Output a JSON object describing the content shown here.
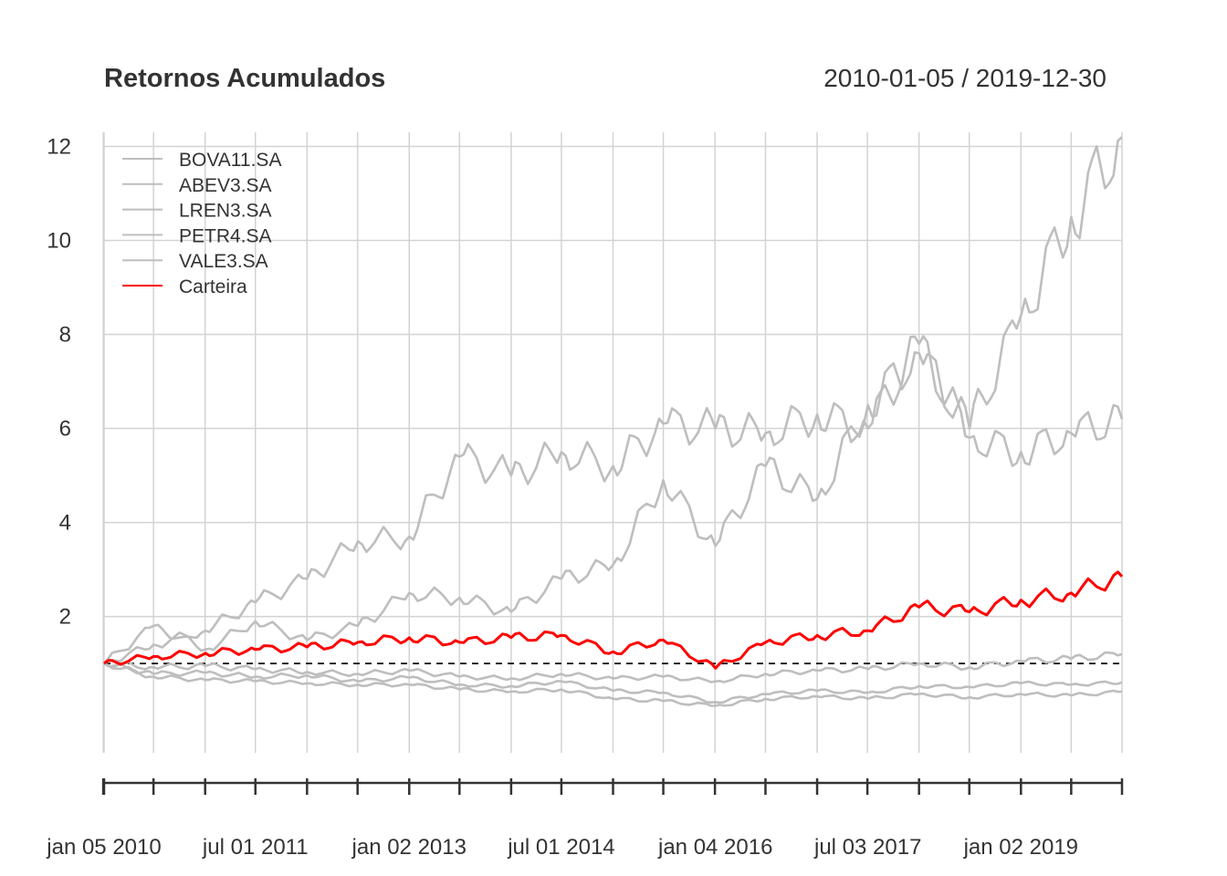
{
  "chart_data": {
    "type": "line",
    "title": "Retornos Acumulados",
    "date_range": "2010-01-05 / 2019-12-30",
    "xlabel": "",
    "ylabel": "",
    "xlim": [
      "2010-01-05",
      "2019-12-30"
    ],
    "ylim": [
      -0.9,
      12.3
    ],
    "grid": true,
    "legend_position": "top-left",
    "x_ticks": [
      "jan 05 2010",
      "jul 01 2011",
      "jan 02 2013",
      "jul 01 2014",
      "jan 04 2016",
      "jul 03 2017",
      "jan 02 2019"
    ],
    "y_ticks": [
      "2",
      "4",
      "6",
      "8",
      "10",
      "12"
    ],
    "reference_line": {
      "y": 1,
      "style": "dashed",
      "color": "#000000"
    },
    "colors": {
      "assets": "#bebebe",
      "portfolio": "#ff0000",
      "grid": "#d3d3d3"
    },
    "series": [
      {
        "name": "BOVA11.SA",
        "color": "#bebebe",
        "x": [
          "2010-01-05",
          "2010-07-01",
          "2011-01-03",
          "2011-07-01",
          "2012-01-02",
          "2012-07-02",
          "2013-01-02",
          "2013-07-01",
          "2014-01-02",
          "2014-07-01",
          "2015-01-02",
          "2015-07-01",
          "2016-01-04",
          "2016-07-01",
          "2017-01-02",
          "2017-07-03",
          "2018-01-02",
          "2018-07-02",
          "2019-01-02",
          "2019-07-01",
          "2019-12-30"
        ],
        "y": [
          1.0,
          0.92,
          0.95,
          0.88,
          0.82,
          0.78,
          0.85,
          0.72,
          0.68,
          0.78,
          0.68,
          0.72,
          0.62,
          0.78,
          0.85,
          0.88,
          1.0,
          0.92,
          1.05,
          1.1,
          1.2
        ]
      },
      {
        "name": "ABEV3.SA",
        "color": "#bebebe",
        "x": [
          "2010-01-05",
          "2010-07-01",
          "2011-01-03",
          "2011-07-01",
          "2012-01-02",
          "2012-07-02",
          "2013-01-02",
          "2013-07-01",
          "2014-01-02",
          "2014-07-01",
          "2015-01-02",
          "2015-07-01",
          "2016-01-04",
          "2016-07-01",
          "2017-01-02",
          "2017-07-03",
          "2018-01-02",
          "2018-07-02",
          "2019-01-02",
          "2019-07-01",
          "2019-12-30"
        ],
        "y": [
          1.0,
          1.4,
          1.7,
          2.3,
          2.8,
          3.6,
          3.7,
          5.4,
          5.0,
          5.5,
          5.2,
          6.1,
          6.0,
          5.9,
          6.3,
          6.0,
          7.8,
          5.8,
          5.5,
          5.9,
          6.2
        ]
      },
      {
        "name": "LREN3.SA",
        "color": "#bebebe",
        "x": [
          "2010-01-05",
          "2010-07-01",
          "2011-01-03",
          "2011-07-01",
          "2012-01-02",
          "2012-07-02",
          "2013-01-02",
          "2013-07-01",
          "2014-01-02",
          "2014-07-01",
          "2015-01-02",
          "2015-07-01",
          "2016-01-04",
          "2016-07-01",
          "2017-01-02",
          "2017-07-03",
          "2018-01-02",
          "2018-07-02",
          "2019-01-02",
          "2019-07-01",
          "2019-12-30"
        ],
        "y": [
          1.0,
          1.8,
          1.3,
          1.9,
          1.5,
          1.8,
          2.5,
          2.4,
          2.1,
          2.8,
          3.1,
          4.9,
          3.5,
          5.2,
          4.5,
          6.5,
          7.6,
          6.0,
          8.4,
          10.5,
          12.2
        ]
      },
      {
        "name": "PETR4.SA",
        "color": "#bebebe",
        "x": [
          "2010-01-05",
          "2010-07-01",
          "2011-01-03",
          "2011-07-01",
          "2012-01-02",
          "2012-07-02",
          "2013-01-02",
          "2013-07-01",
          "2014-01-02",
          "2014-07-01",
          "2015-01-02",
          "2015-07-01",
          "2016-01-04",
          "2016-07-01",
          "2017-01-02",
          "2017-07-03",
          "2018-01-02",
          "2018-07-02",
          "2019-01-02",
          "2019-07-01",
          "2019-12-30"
        ],
        "y": [
          1.0,
          0.78,
          0.8,
          0.72,
          0.75,
          0.62,
          0.7,
          0.55,
          0.52,
          0.62,
          0.42,
          0.38,
          0.18,
          0.35,
          0.42,
          0.38,
          0.52,
          0.5,
          0.58,
          0.55,
          0.6
        ]
      },
      {
        "name": "VALE3.SA",
        "color": "#bebebe",
        "x": [
          "2010-01-05",
          "2010-07-01",
          "2011-01-03",
          "2011-07-01",
          "2012-01-02",
          "2012-07-02",
          "2013-01-02",
          "2013-07-01",
          "2014-01-02",
          "2014-07-01",
          "2015-01-02",
          "2015-07-01",
          "2016-01-04",
          "2016-07-01",
          "2017-01-02",
          "2017-07-03",
          "2018-01-02",
          "2018-07-02",
          "2019-01-02",
          "2019-07-01",
          "2019-12-30"
        ],
        "y": [
          1.0,
          0.72,
          0.65,
          0.62,
          0.58,
          0.55,
          0.55,
          0.45,
          0.4,
          0.45,
          0.25,
          0.2,
          0.1,
          0.25,
          0.3,
          0.25,
          0.35,
          0.28,
          0.35,
          0.32,
          0.4
        ]
      },
      {
        "name": "Carteira",
        "color": "#ff0000",
        "x": [
          "2010-01-05",
          "2010-07-01",
          "2011-01-03",
          "2011-07-01",
          "2012-01-02",
          "2012-07-02",
          "2013-01-02",
          "2013-07-01",
          "2014-01-02",
          "2014-07-01",
          "2015-01-02",
          "2015-07-01",
          "2016-01-04",
          "2016-07-01",
          "2017-01-02",
          "2017-07-03",
          "2018-01-02",
          "2018-07-02",
          "2019-01-02",
          "2019-07-01",
          "2019-12-30"
        ],
        "y": [
          1.0,
          1.15,
          1.22,
          1.3,
          1.35,
          1.45,
          1.55,
          1.45,
          1.55,
          1.6,
          1.25,
          1.5,
          0.9,
          1.45,
          1.6,
          1.7,
          2.2,
          2.1,
          2.35,
          2.5,
          2.85
        ]
      }
    ]
  }
}
